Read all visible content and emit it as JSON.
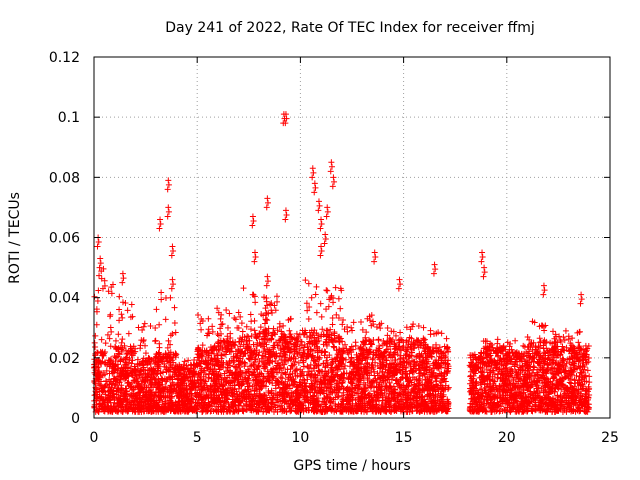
{
  "chart_data": {
    "type": "scatter",
    "title": "Day 241 of 2022, Rate Of TEC Index for receiver ffmj",
    "xlabel": "GPS time / hours",
    "ylabel": "ROTI / TECUs",
    "xlim": [
      0,
      25
    ],
    "ylim": [
      0,
      0.12
    ],
    "x_ticks": [
      "0",
      "5",
      "10",
      "15",
      "20",
      "25"
    ],
    "y_ticks": [
      "0",
      "0.02",
      "0.04",
      "0.06",
      "0.08",
      "0.1",
      "0.12"
    ],
    "x_tick_values": [
      0,
      5,
      10,
      15,
      20,
      25
    ],
    "y_tick_values": [
      0,
      0.02,
      0.04,
      0.06,
      0.08,
      0.1,
      0.12
    ],
    "grid": true,
    "marker": "+",
    "series_color": "#ff0000",
    "data_gap_hours": [
      17.2,
      18.2
    ],
    "notable_points": [
      {
        "x": 0.2,
        "y": 0.06
      },
      {
        "x": 0.3,
        "y": 0.053
      },
      {
        "x": 1.4,
        "y": 0.048
      },
      {
        "x": 3.2,
        "y": 0.066
      },
      {
        "x": 3.6,
        "y": 0.079
      },
      {
        "x": 3.6,
        "y": 0.07
      },
      {
        "x": 3.8,
        "y": 0.057
      },
      {
        "x": 3.8,
        "y": 0.046
      },
      {
        "x": 7.7,
        "y": 0.067
      },
      {
        "x": 7.8,
        "y": 0.055
      },
      {
        "x": 8.4,
        "y": 0.073
      },
      {
        "x": 8.4,
        "y": 0.047
      },
      {
        "x": 9.2,
        "y": 0.101
      },
      {
        "x": 9.3,
        "y": 0.101
      },
      {
        "x": 9.3,
        "y": 0.069
      },
      {
        "x": 10.6,
        "y": 0.083
      },
      {
        "x": 10.7,
        "y": 0.078
      },
      {
        "x": 10.9,
        "y": 0.072
      },
      {
        "x": 11.0,
        "y": 0.066
      },
      {
        "x": 11.2,
        "y": 0.061
      },
      {
        "x": 11.3,
        "y": 0.07
      },
      {
        "x": 11.5,
        "y": 0.085
      },
      {
        "x": 11.6,
        "y": 0.08
      },
      {
        "x": 11.0,
        "y": 0.057
      },
      {
        "x": 13.6,
        "y": 0.055
      },
      {
        "x": 14.8,
        "y": 0.046
      },
      {
        "x": 16.5,
        "y": 0.051
      },
      {
        "x": 18.8,
        "y": 0.055
      },
      {
        "x": 18.9,
        "y": 0.05
      },
      {
        "x": 21.8,
        "y": 0.044
      },
      {
        "x": 23.6,
        "y": 0.041
      }
    ],
    "density_profile": [
      {
        "from": 0,
        "to": 1,
        "base_max": 0.02,
        "extra": 0.038
      },
      {
        "from": 1,
        "to": 2,
        "base_max": 0.022,
        "extra": 0.028
      },
      {
        "from": 2,
        "to": 3,
        "base_max": 0.018,
        "extra": 0.022
      },
      {
        "from": 3,
        "to": 4,
        "base_max": 0.02,
        "extra": 0.03
      },
      {
        "from": 4,
        "to": 5,
        "base_max": 0.016,
        "extra": 0.01
      },
      {
        "from": 5,
        "to": 6,
        "base_max": 0.022,
        "extra": 0.024
      },
      {
        "from": 6,
        "to": 7,
        "base_max": 0.024,
        "extra": 0.022
      },
      {
        "from": 7,
        "to": 8,
        "base_max": 0.026,
        "extra": 0.028
      },
      {
        "from": 8,
        "to": 9,
        "base_max": 0.028,
        "extra": 0.024
      },
      {
        "from": 9,
        "to": 10,
        "base_max": 0.026,
        "extra": 0.018
      },
      {
        "from": 10,
        "to": 11,
        "base_max": 0.028,
        "extra": 0.03
      },
      {
        "from": 11,
        "to": 12,
        "base_max": 0.026,
        "extra": 0.028
      },
      {
        "from": 12,
        "to": 13,
        "base_max": 0.022,
        "extra": 0.02
      },
      {
        "from": 13,
        "to": 14,
        "base_max": 0.024,
        "extra": 0.02
      },
      {
        "from": 14,
        "to": 15,
        "base_max": 0.024,
        "extra": 0.016
      },
      {
        "from": 15,
        "to": 16,
        "base_max": 0.024,
        "extra": 0.018
      },
      {
        "from": 16,
        "to": 17.2,
        "base_max": 0.022,
        "extra": 0.016
      },
      {
        "from": 18.2,
        "to": 19,
        "base_max": 0.02,
        "extra": 0.014
      },
      {
        "from": 19,
        "to": 20,
        "base_max": 0.022,
        "extra": 0.014
      },
      {
        "from": 20,
        "to": 21,
        "base_max": 0.02,
        "extra": 0.014
      },
      {
        "from": 21,
        "to": 22,
        "base_max": 0.024,
        "extra": 0.018
      },
      {
        "from": 22,
        "to": 23,
        "base_max": 0.022,
        "extra": 0.016
      },
      {
        "from": 23,
        "to": 24,
        "base_max": 0.022,
        "extra": 0.016
      }
    ]
  }
}
